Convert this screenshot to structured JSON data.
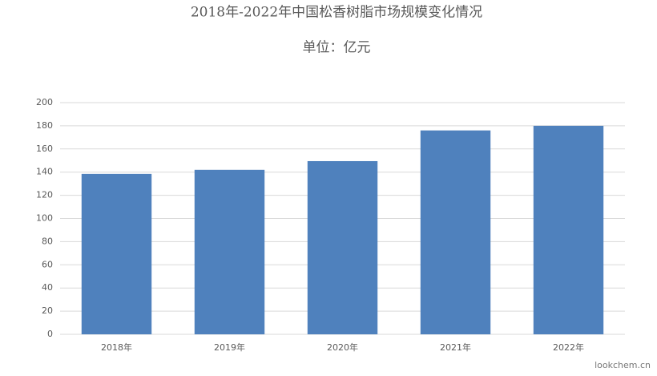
{
  "chart_data": {
    "type": "bar",
    "title": "2018年-2022年中国松香树脂市场规模变化情况",
    "subtitle": "单位：亿元",
    "categories": [
      "2018年",
      "2019年",
      "2020年",
      "2021年",
      "2022年"
    ],
    "values": [
      138.5,
      142,
      149.5,
      176,
      180
    ],
    "color": "#4f81bd",
    "ylim": [
      0,
      200
    ],
    "yticks": [
      0,
      20,
      40,
      60,
      80,
      100,
      120,
      140,
      160,
      180,
      200
    ],
    "grid": true,
    "watermark": "lookchem.cn"
  }
}
